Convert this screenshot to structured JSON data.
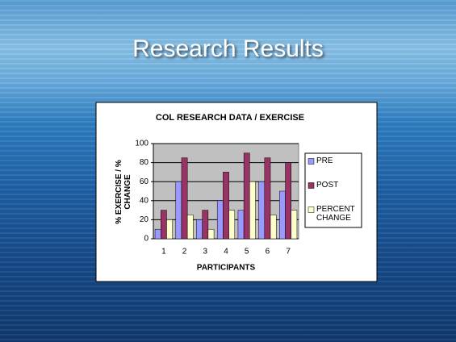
{
  "slide_title": "Research Results",
  "chart_data": {
    "type": "bar",
    "title": "COL RESEARCH DATA / EXERCISE",
    "x_label": "PARTICIPANTS",
    "y_label": "% EXERCISE / % CHANGE",
    "categories": [
      "1",
      "2",
      "3",
      "4",
      "5",
      "6",
      "7"
    ],
    "series": [
      {
        "name": "PRE",
        "color": "#9999ff",
        "values": [
          10,
          60,
          20,
          40,
          30,
          60,
          50
        ]
      },
      {
        "name": "POST",
        "color": "#993366",
        "values": [
          30,
          85,
          30,
          70,
          90,
          85,
          80
        ]
      },
      {
        "name": "PERCENT CHANGE",
        "color": "#ffffcc",
        "values": [
          20,
          25,
          10,
          30,
          60,
          25,
          30
        ]
      }
    ],
    "ylim": [
      0,
      100
    ],
    "yticks": [
      0,
      20,
      40,
      60,
      80,
      100
    ],
    "grid": true,
    "legend": "right"
  }
}
